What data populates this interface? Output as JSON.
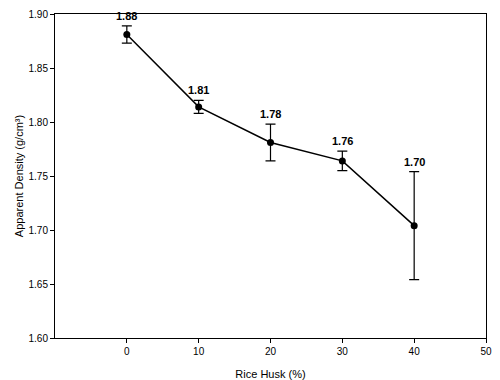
{
  "chart_data": {
    "type": "line",
    "x_label": "Rice Husk (%)",
    "y_label": "Apparent Density (g/cm³)",
    "x": [
      0,
      10,
      20,
      30,
      40
    ],
    "values": [
      1.881,
      1.814,
      1.781,
      1.764,
      1.704
    ],
    "value_labels": [
      "1.88",
      "1.81",
      "1.78",
      "1.76",
      "1.70"
    ],
    "error": [
      0.008,
      0.006,
      0.017,
      0.009,
      0.05
    ],
    "color": "#000000",
    "marker": "circle",
    "line_style": "solid",
    "data_labels": true,
    "grid": false,
    "xlim": [
      -10,
      50
    ],
    "xticks": [
      0,
      10,
      20,
      30,
      40,
      50
    ],
    "ylim": [
      1.6,
      1.9
    ],
    "yticks": [
      {
        "value": 1.6,
        "label": "1.60"
      },
      1.65,
      {
        "value": 1.7,
        "label": "1.70"
      },
      1.75,
      {
        "value": 1.8,
        "label": "1.80"
      },
      1.85,
      {
        "value": 1.9,
        "label": "1.90"
      }
    ]
  }
}
